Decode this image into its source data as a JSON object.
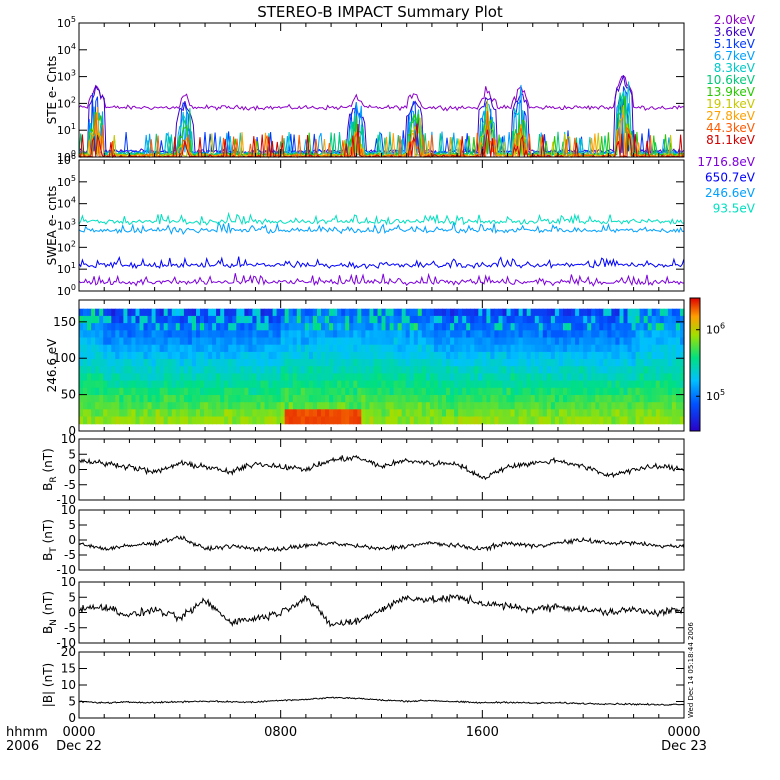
{
  "title": "STEREO-B IMPACT Summary Plot",
  "time_axis": {
    "row1_label": "hhmm",
    "row2_label": "2006",
    "ticks": [
      {
        "hhmm": "0000",
        "date": "Dec 22"
      },
      {
        "hhmm": "0800",
        "date": ""
      },
      {
        "hhmm": "1600",
        "date": ""
      },
      {
        "hhmm": "0000",
        "date": "Dec 23"
      }
    ]
  },
  "side_stamp": "Wed Dec 14 05:18:44 2006",
  "colors": {
    "ste": [
      "#8b00c8",
      "#3c00c8",
      "#0038ff",
      "#00a0ff",
      "#00c8c8",
      "#00c878",
      "#28c800",
      "#c8c800",
      "#ffa000",
      "#ff5a00",
      "#d00000"
    ],
    "swea": [
      "#7d00dc",
      "#0000ff",
      "#00a0ff",
      "#00e0c0"
    ]
  },
  "chart_data": [
    {
      "type": "line",
      "panel": "STE",
      "ylabel": "STE e- Cnts",
      "yscale": "log",
      "ylim": [
        1,
        100000
      ],
      "yticks": [
        "10^0",
        "10^1",
        "10^2",
        "10^3",
        "10^4",
        "10^5"
      ],
      "x_range_hours": [
        0,
        24
      ],
      "series": [
        {
          "name": "2.0keV",
          "baseline": 70,
          "bursts": [
            [
              0.7,
              500
            ],
            [
              4.2,
              200
            ],
            [
              11.0,
              250
            ],
            [
              13.3,
              300
            ],
            [
              16.2,
              400
            ],
            [
              17.5,
              450
            ],
            [
              21.6,
              1200
            ]
          ]
        },
        {
          "name": "3.6keV",
          "baseline": 1.6,
          "bursts": [
            [
              0.7,
              400
            ],
            [
              4.2,
              120
            ],
            [
              11.0,
              80
            ],
            [
              13.3,
              150
            ],
            [
              16.2,
              200
            ],
            [
              17.5,
              250
            ],
            [
              21.6,
              900
            ]
          ]
        },
        {
          "name": "5.1keV",
          "baseline": 1.5
        },
        {
          "name": "6.7keV",
          "baseline": 1.4
        },
        {
          "name": "8.3keV",
          "baseline": 1.3
        },
        {
          "name": "10.6keV",
          "baseline": 1.25
        },
        {
          "name": "13.9keV",
          "baseline": 1.2
        },
        {
          "name": "19.1keV",
          "baseline": 1.15
        },
        {
          "name": "27.8keV",
          "baseline": 1.1
        },
        {
          "name": "44.3keV",
          "baseline": 1.05
        },
        {
          "name": "81.1keV",
          "baseline": 1.0
        }
      ]
    },
    {
      "type": "line",
      "panel": "SWEA",
      "ylabel": "SWEA e- cnts",
      "yscale": "log",
      "ylim": [
        1,
        1000000
      ],
      "yticks": [
        "10^0",
        "10^1",
        "10^2",
        "10^3",
        "10^4",
        "10^5",
        "10^6"
      ],
      "series": [
        {
          "name": "1716.8eV",
          "baseline": 2.5
        },
        {
          "name": "650.7eV",
          "baseline": 15
        },
        {
          "name": "246.6eV",
          "baseline": 600
        },
        {
          "name": "93.5eV",
          "baseline": 1500
        }
      ]
    },
    {
      "type": "heatmap",
      "panel": "PAD",
      "ylabel": "246.6 eV",
      "ylim": [
        0,
        180
      ],
      "yticks": [
        "0",
        "50",
        "100",
        "150"
      ],
      "colorbar_ticks": [
        "10^5",
        "10^6"
      ],
      "colorbar_range": [
        30000,
        3000000
      ]
    },
    {
      "type": "line",
      "panel": "BR",
      "ylabel": "B_R (nT)",
      "ylim": [
        -10,
        10
      ],
      "yticks": [
        "-10",
        "-5",
        "0",
        "5",
        "10"
      ],
      "x": [
        0,
        1,
        2,
        3,
        4,
        5,
        6,
        7,
        8,
        9,
        10,
        11,
        12,
        13,
        14,
        15,
        16,
        17,
        18,
        19,
        20,
        21,
        22,
        23,
        24
      ],
      "values": [
        3,
        2,
        1,
        -1,
        2,
        1,
        -1,
        2,
        1,
        0,
        3,
        4,
        1,
        3,
        2,
        2,
        -3,
        1,
        2,
        3,
        1,
        -2,
        0,
        1,
        0
      ]
    },
    {
      "type": "line",
      "panel": "BT",
      "ylabel": "B_T (nT)",
      "ylim": [
        -10,
        10
      ],
      "yticks": [
        "-10",
        "-5",
        "0",
        "5",
        "10"
      ],
      "x": [
        0,
        1,
        2,
        3,
        4,
        5,
        6,
        7,
        8,
        9,
        10,
        11,
        12,
        13,
        14,
        15,
        16,
        17,
        18,
        19,
        20,
        21,
        22,
        23,
        24
      ],
      "values": [
        -1,
        -3,
        -2,
        -1,
        1,
        -3,
        -2,
        -3,
        -3,
        -2,
        -1,
        -2,
        -3,
        -2,
        -1,
        -2,
        -3,
        -1,
        -2,
        -1,
        0,
        -1,
        -1,
        -2,
        -2
      ]
    },
    {
      "type": "line",
      "panel": "BN",
      "ylabel": "B_N (nT)",
      "ylim": [
        -10,
        10
      ],
      "yticks": [
        "-10",
        "-5",
        "0",
        "5",
        "10"
      ],
      "x": [
        0,
        1,
        2,
        3,
        4,
        5,
        6,
        7,
        8,
        9,
        10,
        11,
        12,
        13,
        14,
        15,
        16,
        17,
        18,
        19,
        20,
        21,
        22,
        23,
        24
      ],
      "values": [
        1,
        2,
        -1,
        1,
        -2,
        4,
        -3,
        -2,
        0,
        5,
        -4,
        -3,
        1,
        5,
        4,
        5,
        3,
        2,
        1,
        2,
        1,
        0,
        1,
        0,
        1
      ]
    },
    {
      "type": "line",
      "panel": "B",
      "ylabel": "|B| (nT)",
      "ylim": [
        0,
        20
      ],
      "yticks": [
        "0",
        "5",
        "10",
        "15",
        "20"
      ],
      "x": [
        0,
        1,
        2,
        3,
        4,
        5,
        6,
        7,
        8,
        9,
        10,
        11,
        12,
        13,
        14,
        15,
        16,
        17,
        18,
        19,
        20,
        21,
        22,
        23,
        24
      ],
      "values": [
        5,
        4.6,
        4.8,
        4.7,
        4.9,
        5.1,
        4.9,
        4.8,
        5.4,
        5.6,
        6.2,
        6.0,
        5.4,
        5.1,
        5.3,
        4.9,
        4.6,
        4.8,
        4.5,
        4.6,
        4.4,
        4.3,
        4.2,
        4.0,
        4.2
      ]
    }
  ]
}
